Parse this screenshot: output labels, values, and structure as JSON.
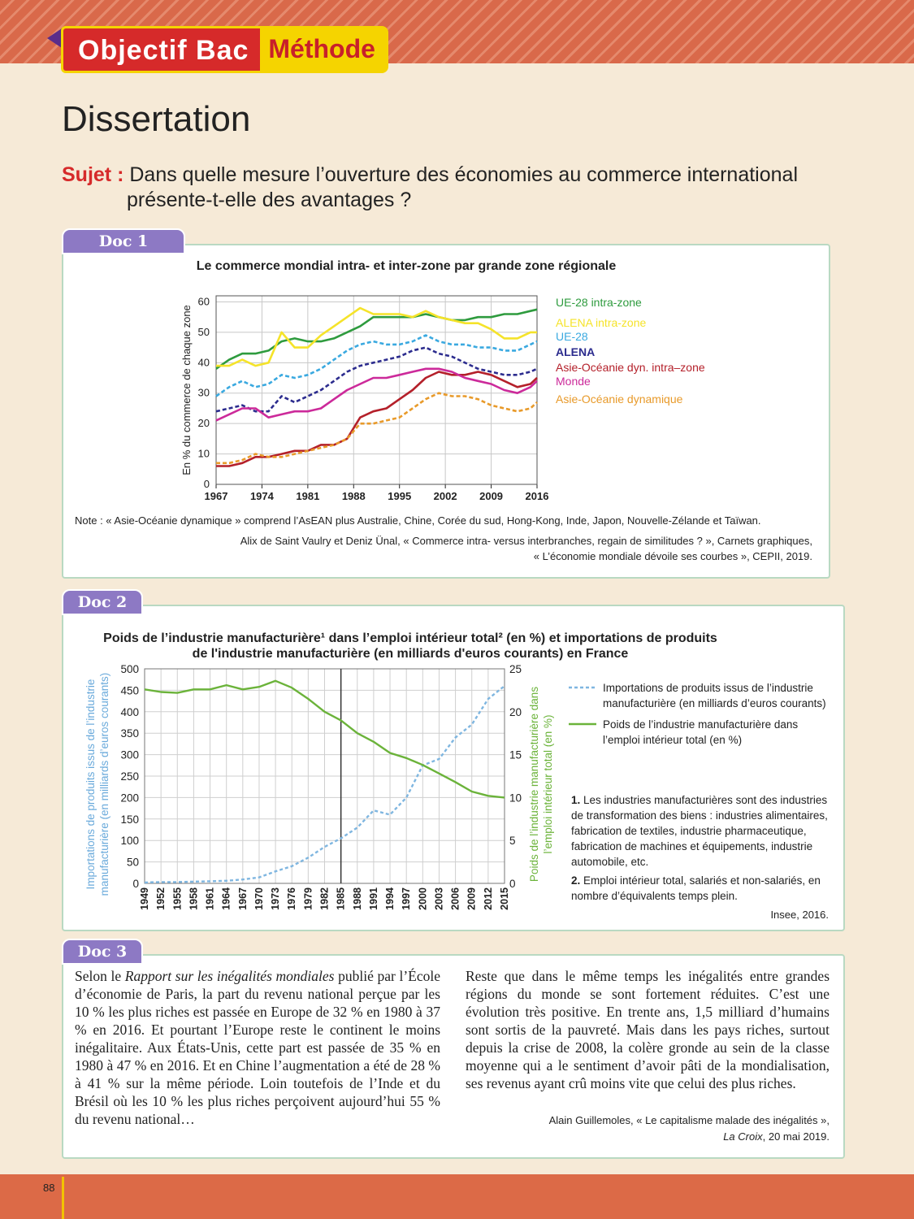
{
  "header": {
    "objectif": "Objectif Bac",
    "methode": "Méthode",
    "title": "Dissertation",
    "sujet_label": "Sujet :",
    "sujet_line1": "Dans quelle mesure l’ouverture des économies au commerce international",
    "sujet_line2": "présente-t-elle des avantages ?"
  },
  "doc1": {
    "tab": "Doc 1",
    "note": "Note : « Asie-Océanie dynamique » comprend l’AsEAN plus Australie, Chine, Corée du sud, Hong-Kong, Inde, Japon, Nouvelle-Zélande et Taïwan.",
    "source1": "Alix de Saint Vaulry et Deniz Ünal, « Commerce intra- versus interbranches, regain de similitudes ? », Carnets graphiques,",
    "source2": "« L’économie mondiale dévoile ses courbes », CEPII, 2019."
  },
  "doc2": {
    "tab": "Doc 2",
    "title1": "Poids de l’industrie manufacturière¹ dans l’emploi intérieur total² (en %) et importations de produits",
    "title2": "de l'industrie manufacturière (en milliards d'euros courants) en France",
    "fn1_num": "1.",
    "fn1": "Les industries manufacturières sont des industries de transformation des biens : industries alimentaires, fabrication de textiles, industrie pharmaceutique, fabrication de machines et équipements, industrie automobile, etc.",
    "fn2_num": "2.",
    "fn2": "Emploi intérieur total, salariés et non-salariés, en nombre d’équivalents temps plein.",
    "source": "Insee, 2016."
  },
  "doc3": {
    "tab": "Doc 3",
    "col1_a": "Selon le ",
    "col1_em": "Rapport sur les inégalités mondiales",
    "col1_b": " publié par l’École d’économie de Paris, la part du revenu national perçue par les 10 % les plus riches est passée en Europe de 32 % en 1980 à 37 % en 2016. Et pourtant l’Europe reste le continent le moins inégalitaire. Aux États-Unis, cette part est passée de 35 % en 1980 à 47 % en 2016. Et en Chine l’augmentation a été de 28 % à 41 % sur la même période. Loin toutefois de l’Inde et du Brésil où les 10 % les plus riches perçoivent aujourd’hui 55 % du revenu national…",
    "col2": "Reste que dans le même temps les inégalités entre grandes régions du monde se sont fortement réduites. C’est une évolution très positive. En trente ans, 1,5 milliard d’humains sont sortis de la pauvreté. Mais dans les pays riches, surtout depuis la crise de 2008, la colère gronde au sein de la classe moyenne qui a le sentiment d’avoir pâti de la mondialisation, ses revenus ayant crû moins vite que celui des plus riches.",
    "source_author": "Alain Guillemoles, « Le capitalisme malade des inégalités »,",
    "source_pub": "La Croix",
    "source_date": ", 20 mai 2019."
  },
  "page_number": "88",
  "chart_data": [
    {
      "type": "line",
      "title": "Le commerce mondial intra- et inter-zone par grande zone régionale",
      "ylabel": "En % du commerce de chaque zone",
      "xlabel": "",
      "x_ticks": [
        1967,
        1974,
        1981,
        1988,
        1995,
        2002,
        2009,
        2016
      ],
      "y_ticks": [
        0,
        10,
        20,
        30,
        40,
        50,
        60
      ],
      "ylim": [
        0,
        62
      ],
      "xlim": [
        1967,
        2016
      ],
      "grid": true,
      "legend": "right",
      "x": [
        1967,
        1969,
        1971,
        1973,
        1975,
        1977,
        1979,
        1981,
        1983,
        1985,
        1987,
        1989,
        1991,
        1993,
        1995,
        1997,
        1999,
        2001,
        2003,
        2005,
        2007,
        2009,
        2011,
        2013,
        2015,
        2016
      ],
      "series": [
        {
          "name": "UE-28 intra-zone",
          "color": "#2e9b3e",
          "dashed": false,
          "values": [
            38,
            41,
            43,
            43,
            44,
            47,
            48,
            47,
            47,
            48,
            50,
            52,
            55,
            55,
            55,
            55,
            56,
            55,
            54,
            54,
            55,
            55,
            56,
            56,
            57,
            57.5
          ]
        },
        {
          "name": "ALENA intra-zone",
          "color": "#f5e32a",
          "dashed": false,
          "values": [
            39,
            39,
            41,
            39,
            40,
            50,
            45,
            45,
            49,
            52,
            55,
            58,
            56,
            56,
            56,
            55,
            57,
            55,
            54,
            53,
            53,
            51,
            48,
            48,
            50,
            50
          ]
        },
        {
          "name": "UE-28",
          "color": "#3aa9e0",
          "dashed": true,
          "values": [
            29,
            32,
            34,
            32,
            33,
            36,
            35,
            36,
            38,
            41,
            44,
            46,
            47,
            46,
            46,
            47,
            49,
            47,
            46,
            46,
            45,
            45,
            44,
            44,
            46,
            47
          ]
        },
        {
          "name": "ALENA",
          "color": "#2c2c8e",
          "dashed": true,
          "values": [
            24,
            25,
            26,
            24,
            24,
            29,
            27,
            29,
            31,
            34,
            37,
            39,
            40,
            41,
            42,
            44,
            45,
            43,
            42,
            40,
            38,
            37,
            36,
            36,
            37,
            38
          ]
        },
        {
          "name": "Asie-Océanie dyn. intra–zone",
          "color": "#b4202a",
          "dashed": false,
          "values": [
            6,
            6,
            7,
            9,
            9,
            10,
            11,
            11,
            13,
            13,
            15,
            22,
            24,
            25,
            28,
            31,
            35,
            37,
            36,
            36,
            37,
            36,
            34,
            32,
            33,
            35
          ]
        },
        {
          "name": "Monde",
          "color": "#cc2a9a",
          "dashed": false,
          "values": [
            21,
            23,
            25,
            25,
            22,
            23,
            24,
            24,
            25,
            28,
            31,
            33,
            35,
            35,
            36,
            37,
            38,
            38,
            37,
            35,
            34,
            33,
            31,
            30,
            32,
            34
          ]
        },
        {
          "name": "Asie-Océanie dynamique",
          "color": "#e89a2a",
          "dashed": true,
          "values": [
            7,
            7,
            8,
            10,
            9,
            9,
            10,
            11,
            12,
            13,
            15,
            20,
            20,
            21,
            22,
            25,
            28,
            30,
            29,
            29,
            28,
            26,
            25,
            24,
            25,
            27
          ]
        }
      ]
    },
    {
      "type": "line",
      "title": "Poids de l’industrie manufacturière dans l’emploi intérieur total (en %) et importations de produits de l'industrie manufacturière (en milliards d'euros courants) en France",
      "ylabel_left": "Importations de produits issus de l’industrie manufacturière (en milliards d’euros courants)",
      "ylabel_right": "Poids de l’industrie manufacturière dans l’emploi intérieur total (en %)",
      "x_ticks": [
        1949,
        1952,
        1955,
        1958,
        1961,
        1964,
        1967,
        1970,
        1973,
        1976,
        1979,
        1982,
        1985,
        1988,
        1991,
        1994,
        1997,
        2000,
        2003,
        2006,
        2009,
        2012,
        2015
      ],
      "y_left_ticks": [
        0,
        50,
        100,
        150,
        200,
        250,
        300,
        350,
        400,
        450,
        500
      ],
      "y_right_ticks": [
        0,
        5,
        10,
        15,
        20,
        25
      ],
      "ylim_left": [
        0,
        500
      ],
      "ylim_right": [
        0,
        25
      ],
      "marker_year": 1985,
      "x": [
        1949,
        1952,
        1955,
        1958,
        1961,
        1964,
        1967,
        1970,
        1973,
        1976,
        1979,
        1982,
        1985,
        1988,
        1991,
        1994,
        1997,
        2000,
        2003,
        2006,
        2009,
        2012,
        2015
      ],
      "series": [
        {
          "name": "Importations de produits issus de l’industrie manufacturière (en milliards d’euros courants)",
          "axis": "left",
          "color": "#7fb6e0",
          "dashed": true,
          "values": [
            2,
            3,
            3,
            4,
            5,
            6,
            9,
            14,
            28,
            40,
            60,
            85,
            105,
            130,
            170,
            160,
            200,
            275,
            290,
            340,
            370,
            430,
            460
          ]
        },
        {
          "name": "Poids de l’industrie manufacturière dans l’emploi intérieur total (en %)",
          "axis": "right",
          "color": "#6bb33a",
          "dashed": false,
          "values": [
            22.6,
            22.3,
            22.2,
            22.6,
            22.6,
            23.1,
            22.6,
            22.9,
            23.6,
            22.8,
            21.5,
            20.0,
            19.0,
            17.5,
            16.5,
            15.2,
            14.6,
            13.8,
            12.8,
            11.8,
            10.7,
            10.2,
            10.0
          ]
        }
      ]
    }
  ]
}
